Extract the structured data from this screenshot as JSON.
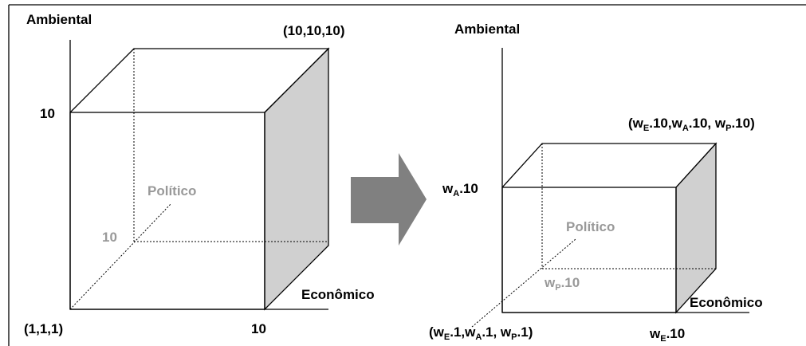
{
  "left": {
    "axis_y": "Ambiental",
    "corner_top": "(10,10,10)",
    "tick_y": "10",
    "axis_z": "Político",
    "tick_z": "10",
    "axis_x": "Econômico",
    "origin": "(1,1,1)",
    "tick_x": "10"
  },
  "right": {
    "axis_y": "Ambiental",
    "corner_top": [
      "(w",
      "E",
      ".10,w",
      "A",
      ".10, w",
      "P",
      ".10)"
    ],
    "tick_y": [
      "w",
      "A",
      ".10"
    ],
    "axis_z": "Político",
    "tick_z": [
      "w",
      "P",
      ".10"
    ],
    "axis_x": "Econômico",
    "origin": [
      "(w",
      "E",
      ".1,w",
      "A",
      ".1, w",
      "P",
      ".1)"
    ],
    "tick_x": [
      "w",
      "E",
      ".10"
    ]
  }
}
